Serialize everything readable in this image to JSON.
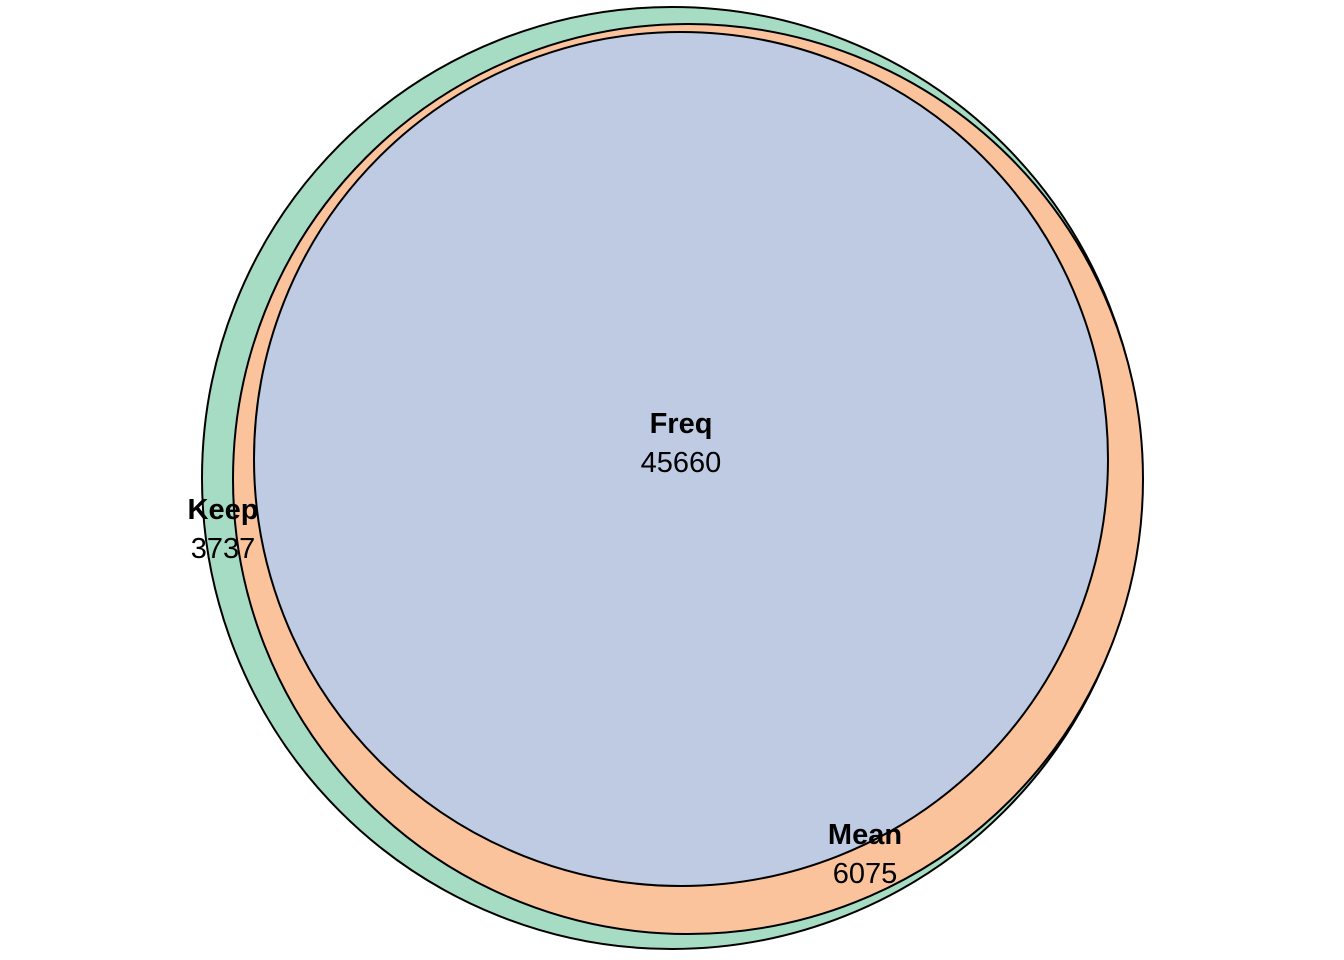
{
  "diagram": {
    "type": "euler",
    "sets": [
      {
        "name": "Keep",
        "count": "3737",
        "color": "#a6dcc3"
      },
      {
        "name": "Mean",
        "count": "6075",
        "color": "#fbc39c"
      },
      {
        "name": "Freq",
        "count": "45660",
        "color": "#bfcae3"
      }
    ],
    "outline_color": "#000000"
  }
}
